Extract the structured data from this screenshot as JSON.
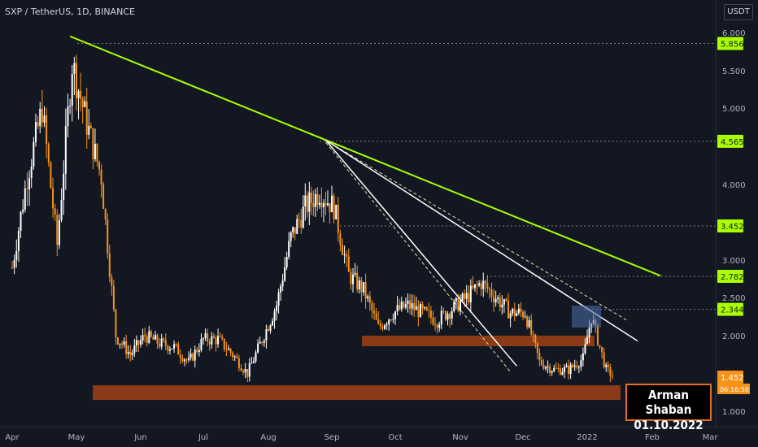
{
  "header": {
    "symbol": "SXP / TetherUS, 1D, BINANCE",
    "currency": "USDT"
  },
  "author": {
    "name": "Arman Shaban",
    "date": "01.10.2022"
  },
  "colors": {
    "background": "#131722",
    "candle_up": "#ffffff",
    "candle_down": "#f7931a",
    "trendline_main": "#aaff00",
    "support_zone": "#8a3a16",
    "grid_dashed": "#787b86"
  },
  "chart_data": {
    "type": "candlestick",
    "symbol": "SXP/USDT",
    "timeframe": "1D",
    "exchange": "BINANCE",
    "ylim": [
      0.9,
      6.3
    ],
    "y_ticks": [
      "6.000",
      "5.500",
      "5.000",
      "4.000",
      "3.000",
      "2.500",
      "2.000",
      "1.000"
    ],
    "x_ticks": [
      "Apr",
      "May",
      "Jun",
      "Jul",
      "Aug",
      "Sep",
      "Oct",
      "Nov",
      "Dec",
      "2022",
      "Feb",
      "Mar"
    ],
    "price_labels": [
      {
        "value": 5.856,
        "text": "5.856",
        "color": "#aaff00"
      },
      {
        "value": 4.565,
        "text": "4.565",
        "color": "#aaff00"
      },
      {
        "value": 3.452,
        "text": "3.452",
        "color": "#aaff00"
      },
      {
        "value": 2.782,
        "text": "2.782",
        "color": "#aaff00"
      },
      {
        "value": 2.344,
        "text": "2.344",
        "color": "#aaff00"
      },
      {
        "value": 1.452,
        "text": "1.452",
        "color": "#f7931a"
      }
    ],
    "last_price": {
      "value": "1.452",
      "countdown": "06:16:58"
    },
    "horizontal_levels": [
      5.856,
      4.565,
      3.452,
      2.782,
      2.344
    ],
    "zones": [
      {
        "from": 1.3,
        "to": 1.5,
        "label": "support"
      },
      {
        "from": 1.87,
        "to": 2.0,
        "label": "resistance"
      }
    ],
    "trendlines": [
      {
        "from": [
          "2021-04-28",
          5.95
        ],
        "to": [
          "2022-02-05",
          2.79
        ],
        "style": "main"
      },
      {
        "from": [
          "2021-08-29",
          4.58
        ],
        "to": [
          "2022-01-25",
          1.93
        ],
        "style": "white"
      },
      {
        "from": [
          "2021-08-29",
          4.58
        ],
        "to": [
          "2021-11-28",
          1.6
        ],
        "style": "white"
      },
      {
        "from": [
          "2021-08-29",
          4.58
        ],
        "to": [
          "2022-01-20",
          2.2
        ],
        "style": "dashed"
      }
    ],
    "series": [
      {
        "name": "SXP/USDT",
        "values": [
          {
            "date": "2021-04-01",
            "close": 2.9
          },
          {
            "date": "2021-04-08",
            "close": 4.1
          },
          {
            "date": "2021-04-15",
            "close": 5.0
          },
          {
            "date": "2021-04-22",
            "close": 3.2
          },
          {
            "date": "2021-04-29",
            "close": 5.6
          },
          {
            "date": "2021-05-06",
            "close": 4.8
          },
          {
            "date": "2021-05-13",
            "close": 4.1
          },
          {
            "date": "2021-05-20",
            "close": 2.0
          },
          {
            "date": "2021-05-27",
            "close": 1.75
          },
          {
            "date": "2021-06-03",
            "close": 2.0
          },
          {
            "date": "2021-06-10",
            "close": 1.9
          },
          {
            "date": "2021-06-17",
            "close": 1.85
          },
          {
            "date": "2021-06-24",
            "close": 1.65
          },
          {
            "date": "2021-07-01",
            "close": 1.95
          },
          {
            "date": "2021-07-08",
            "close": 1.95
          },
          {
            "date": "2021-07-15",
            "close": 1.75
          },
          {
            "date": "2021-07-22",
            "close": 1.5
          },
          {
            "date": "2021-07-29",
            "close": 1.95
          },
          {
            "date": "2021-08-05",
            "close": 2.4
          },
          {
            "date": "2021-08-12",
            "close": 3.3
          },
          {
            "date": "2021-08-19",
            "close": 3.7
          },
          {
            "date": "2021-08-26",
            "close": 3.9
          },
          {
            "date": "2021-09-02",
            "close": 3.7
          },
          {
            "date": "2021-09-09",
            "close": 2.8
          },
          {
            "date": "2021-09-16",
            "close": 2.6
          },
          {
            "date": "2021-09-23",
            "close": 2.1
          },
          {
            "date": "2021-09-30",
            "close": 2.3
          },
          {
            "date": "2021-10-07",
            "close": 2.4
          },
          {
            "date": "2021-10-14",
            "close": 2.3
          },
          {
            "date": "2021-10-21",
            "close": 2.2
          },
          {
            "date": "2021-10-28",
            "close": 2.35
          },
          {
            "date": "2021-11-04",
            "close": 2.5
          },
          {
            "date": "2021-11-11",
            "close": 2.7
          },
          {
            "date": "2021-11-18",
            "close": 2.5
          },
          {
            "date": "2021-11-25",
            "close": 2.3
          },
          {
            "date": "2021-12-02",
            "close": 2.3
          },
          {
            "date": "2021-12-09",
            "close": 1.65
          },
          {
            "date": "2021-12-16",
            "close": 1.55
          },
          {
            "date": "2021-12-23",
            "close": 1.55
          },
          {
            "date": "2021-12-30",
            "close": 1.7
          },
          {
            "date": "2022-01-03",
            "close": 2.25
          },
          {
            "date": "2022-01-06",
            "close": 1.95
          },
          {
            "date": "2022-01-10",
            "close": 1.55
          },
          {
            "date": "2022-01-14",
            "close": 1.45
          }
        ]
      }
    ]
  }
}
